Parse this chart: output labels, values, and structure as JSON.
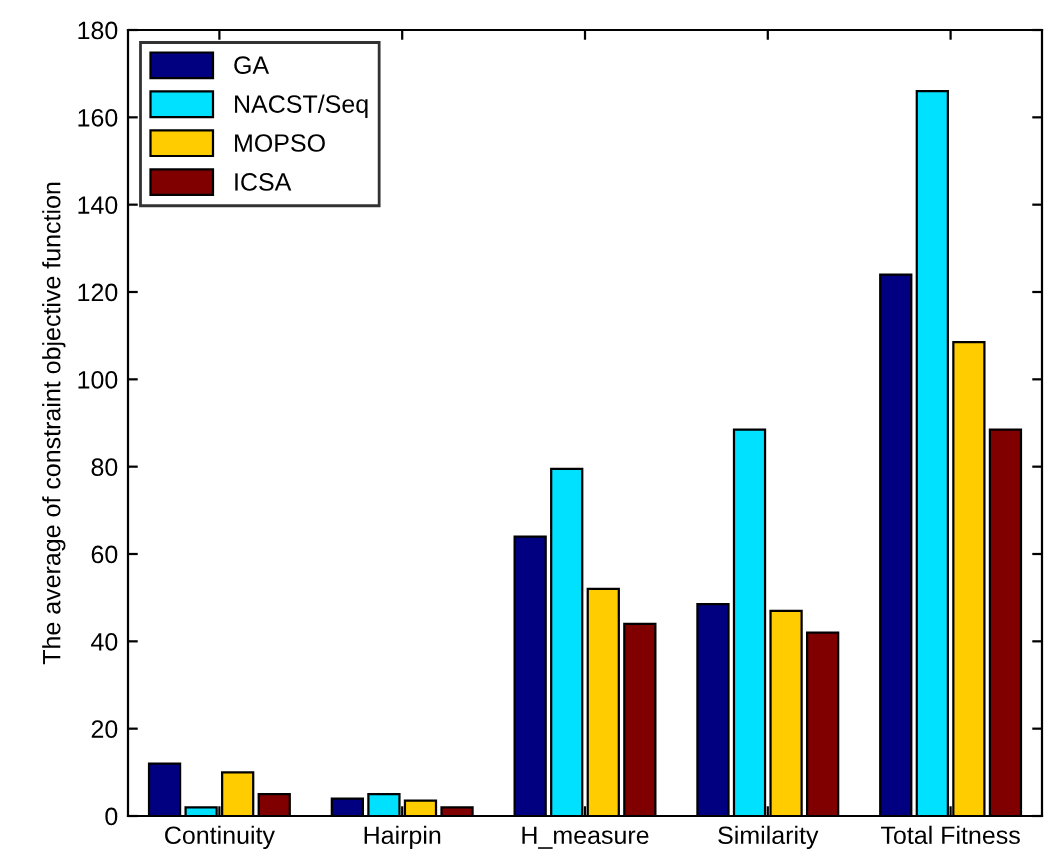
{
  "chart_data": {
    "type": "bar",
    "ylabel": "The average of constraint objective function",
    "categories": [
      "Continuity",
      "Hairpin",
      "H_measure",
      "Similarity",
      "Total Fitness"
    ],
    "series": [
      {
        "name": "GA",
        "color": "#000080",
        "values": [
          12,
          4,
          64,
          48.5,
          124
        ]
      },
      {
        "name": "NACST/Seq",
        "color": "#00e0ff",
        "values": [
          2,
          5,
          79.5,
          88.5,
          166
        ]
      },
      {
        "name": "MOPSO",
        "color": "#ffcc00",
        "values": [
          10,
          3.5,
          52,
          47,
          108.5
        ]
      },
      {
        "name": "ICSA",
        "color": "#800000",
        "values": [
          5,
          2,
          44,
          42,
          88.5
        ]
      }
    ],
    "ylim": [
      0,
      180
    ],
    "yticks": [
      0,
      20,
      40,
      60,
      80,
      100,
      120,
      140,
      160,
      180
    ],
    "grid": false,
    "legend": "top left"
  }
}
